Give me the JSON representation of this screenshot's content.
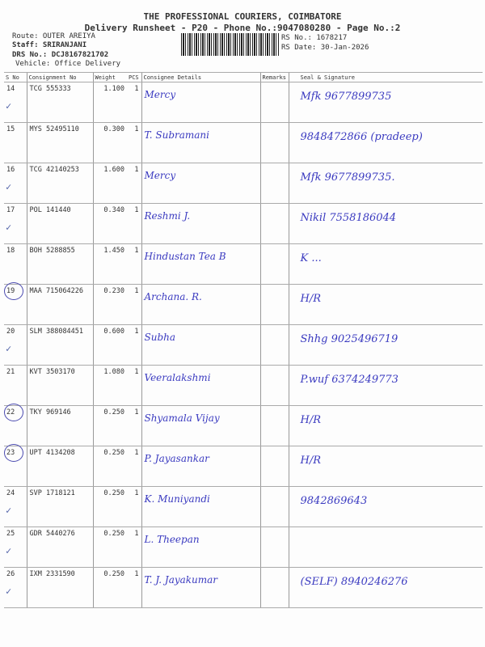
{
  "header": {
    "title": "THE PROFESSIONAL COURIERS, COIMBATORE",
    "subtitle": "Delivery Runsheet - P20 - Phone No.:9047080280 - Page No.:2",
    "route": "Route: OUTER AREIYA",
    "staff": "Staff: SRIRANJANI",
    "drs_no": "DRS No.: DCJ8167821702",
    "vehicle": "Vehicle: Office Delivery",
    "rs_no": "RS No.: 1678217",
    "rs_date": "RS Date: 30-Jan-2026"
  },
  "columns": [
    "S No",
    "Consignment No",
    "Weight",
    "PCS",
    "Consignee Details",
    "Remarks",
    "Seal & Signature"
  ],
  "rows": [
    {
      "sno": "14",
      "cno": "TCG 555333",
      "weight": "1.100",
      "pcs": "1",
      "consignee": "Mercy",
      "signature": "Mfk 9677899735",
      "mark": "tick"
    },
    {
      "sno": "15",
      "cno": "MYS 52495110",
      "weight": "0.300",
      "pcs": "1",
      "consignee": "T. Subramani",
      "signature": "9848472866 (pradeep)",
      "mark": ""
    },
    {
      "sno": "16",
      "cno": "TCG 42140253",
      "weight": "1.600",
      "pcs": "1",
      "consignee": "Mercy",
      "signature": "Mfk 9677899735.",
      "mark": "tick"
    },
    {
      "sno": "17",
      "cno": "POL 141440",
      "weight": "0.340",
      "pcs": "1",
      "consignee": "Reshmi J.",
      "signature": "Nikil 7558186044",
      "mark": "tick"
    },
    {
      "sno": "18",
      "cno": "BOH 5288855",
      "weight": "1.450",
      "pcs": "1",
      "consignee": "Hindustan Tea B",
      "signature": "K ...",
      "mark": ""
    },
    {
      "sno": "19",
      "cno": "MAA 715064226",
      "weight": "0.230",
      "pcs": "1",
      "consignee": "Archana. R.",
      "signature": "H/R",
      "mark": "circle"
    },
    {
      "sno": "20",
      "cno": "SLM 388084451",
      "weight": "0.600",
      "pcs": "1",
      "consignee": "Subha",
      "signature": "Shhg 9025496719",
      "mark": "tick"
    },
    {
      "sno": "21",
      "cno": "KVT 3503170",
      "weight": "1.080",
      "pcs": "1",
      "consignee": "Veeralakshmi",
      "signature": "P.wuf 6374249773",
      "mark": ""
    },
    {
      "sno": "22",
      "cno": "TKY 969146",
      "weight": "0.250",
      "pcs": "1",
      "consignee": "Shyamala Vijay",
      "signature": "H/R",
      "mark": "circle"
    },
    {
      "sno": "23",
      "cno": "UPT 4134208",
      "weight": "0.250",
      "pcs": "1",
      "consignee": "P. Jayasankar",
      "signature": "H/R",
      "mark": "circle"
    },
    {
      "sno": "24",
      "cno": "SVP 1718121",
      "weight": "0.250",
      "pcs": "1",
      "consignee": "K. Muniyandi",
      "signature": "9842869643",
      "mark": "tick"
    },
    {
      "sno": "25",
      "cno": "GDR 5440276",
      "weight": "0.250",
      "pcs": "1",
      "consignee": "L. Theepan",
      "signature": "",
      "mark": "tick"
    },
    {
      "sno": "26",
      "cno": "IXM 2331590",
      "weight": "0.250",
      "pcs": "1",
      "consignee": "T. J. Jayakumar",
      "signature": "(SELF) 8940246276",
      "mark": "tick"
    }
  ]
}
